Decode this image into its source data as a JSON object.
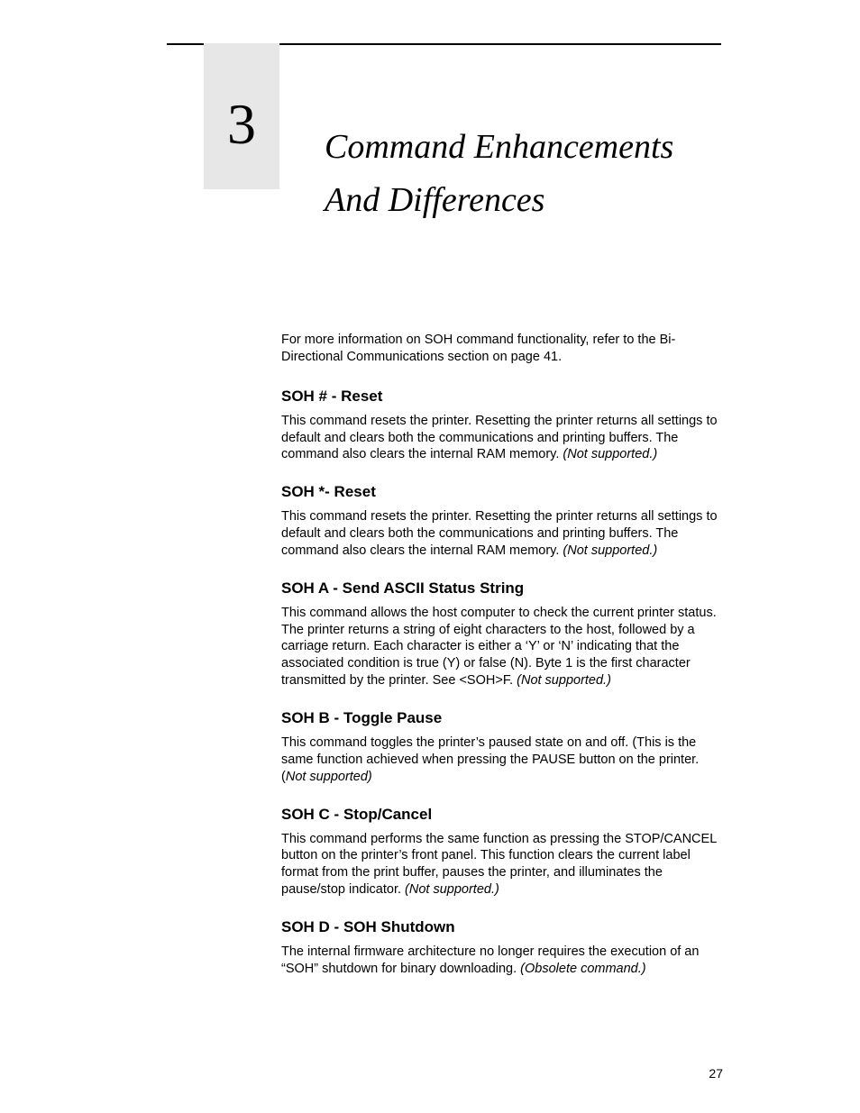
{
  "chapter": {
    "number": "3",
    "title": "Command Enhancements And Differences"
  },
  "intro": {
    "text": "For more information on SOH command functionality, refer to the Bi-Directional Communications section on page 41."
  },
  "sections": [
    {
      "heading": "SOH # - Reset",
      "body": "This command resets the printer. Resetting the printer returns all settings to default and clears both the communications and printing buffers. The command also clears the internal RAM memory. ",
      "note": "(Not supported.)"
    },
    {
      "heading": "SOH *- Reset",
      "body": "This command resets the printer. Resetting the printer returns all settings to default and clears both the communications and printing buffers. The command also clears the internal RAM memory. ",
      "note": "(Not supported.)"
    },
    {
      "heading": "SOH A - Send ASCII Status String",
      "body": "This command allows the host computer to check the current printer status. The printer returns a string of eight characters to the host, followed by a carriage return. Each character is either a ‘Y’ or ‘N’ indicating that the associated condition is true (Y) or false (N). Byte 1 is the first character transmitted by the printer. See <SOH>F. ",
      "note": "(Not supported.)"
    },
    {
      "heading": "SOH B - Toggle Pause",
      "body": "This command toggles the printer’s paused state on and off. (This is the same function achieved when pressing the PAUSE button on the printer. (",
      "note": "Not supported)"
    },
    {
      "heading": "SOH C - Stop/Cancel",
      "body": "This command performs the same function as pressing the STOP/CANCEL button on the printer’s front panel. This function clears the current label format from the print buffer, pauses the printer, and illuminates the pause/stop indicator. ",
      "note": "(Not supported.)"
    },
    {
      "heading": "SOH D - SOH Shutdown",
      "body": "The internal firmware architecture no longer requires the execution of an “SOH” shutdown for binary downloading. ",
      "note": "(Obsolete command.)"
    }
  ],
  "pageNumber": "27"
}
